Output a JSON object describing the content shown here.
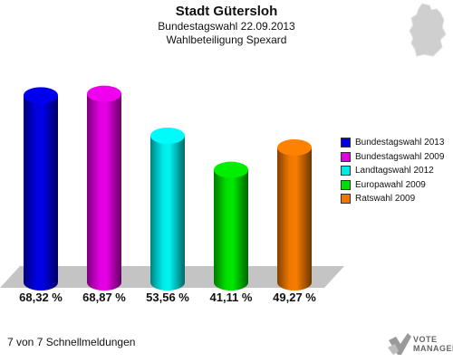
{
  "header": {
    "title": "Stadt Gütersloh",
    "subtitle": "Bundestagswahl 22.09.2013",
    "subtitle2": "Wahlbeteiligung Spexard"
  },
  "footer": {
    "text": "7 von 7 Schnellmeldungen",
    "logo_line1": "VOTE",
    "logo_line2": "MANAGER"
  },
  "chart_data": {
    "type": "bar",
    "title": "Stadt Gütersloh",
    "subtitle": "Bundestagswahl 22.09.2013 Wahlbeteiligung Spexard",
    "categories": [
      "Bundestagswahl 2013",
      "Bundestagswahl 2009",
      "Landtagswahl 2012",
      "Europawahl 2009",
      "Ratswahl 2009"
    ],
    "values": [
      68.32,
      68.87,
      53.56,
      41.11,
      49.27
    ],
    "value_labels": [
      "68,32 %",
      "68,87 %",
      "53,56 %",
      "41,11 %",
      "49,27 %"
    ],
    "colors": [
      "#0000dd",
      "#dd00dd",
      "#00e8e8",
      "#00dd00",
      "#ee7700"
    ],
    "legend": [
      "Bundestagswahl 2013",
      "Bundestagswahl 2009",
      "Landtagswahl 2012",
      "Europawahl 2009",
      "Ratswahl 2009"
    ],
    "legend_position": "right",
    "ylim": [
      0,
      80
    ],
    "grid": false,
    "xlabel": "",
    "ylabel": ""
  }
}
